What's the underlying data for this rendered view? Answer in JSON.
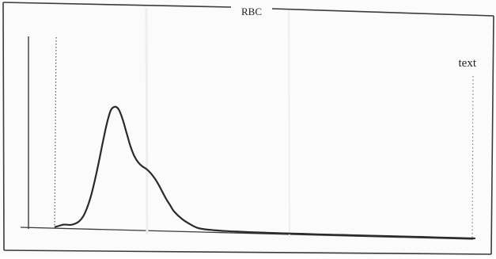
{
  "chart_data": {
    "type": "line",
    "title": "RBC",
    "annotation": "text",
    "xlabel": "",
    "ylabel": "",
    "grid": false,
    "legend": "none",
    "x": [
      0,
      5,
      10,
      15,
      20,
      25,
      30,
      35,
      40,
      45,
      50,
      55,
      60,
      65,
      70,
      75,
      80,
      85,
      90,
      95,
      100,
      105,
      110,
      115,
      120,
      125,
      130,
      135,
      140,
      145,
      150,
      160,
      170,
      180,
      190,
      200,
      215,
      230,
      245,
      260,
      275,
      290,
      310,
      330,
      350,
      370,
      390,
      410,
      430,
      450,
      470,
      490,
      510,
      530
    ],
    "series": [
      {
        "values": [
          1,
          2,
          3,
          3,
          3,
          4,
          6,
          10,
          17,
          27,
          40,
          55,
          71,
          86,
          97,
          100,
          98,
          90,
          79,
          68,
          60,
          55,
          52,
          50,
          47,
          43,
          38,
          32,
          26,
          21,
          16,
          10,
          6,
          3,
          2,
          1.5,
          1,
          0.8,
          0.6,
          0.5,
          0.4,
          0.3,
          0.3,
          0.2,
          0.2,
          0.2,
          0.1,
          0.1,
          0.1,
          0.1,
          0.1,
          0,
          0,
          0
        ]
      }
    ],
    "xlim": [
      0,
      530
    ],
    "ylim": [
      0,
      100
    ]
  },
  "colors": {
    "curve": "#2a2a2a",
    "frame": "#3a3a3a",
    "dotted": "#555555",
    "background": "#fbfbfb"
  }
}
